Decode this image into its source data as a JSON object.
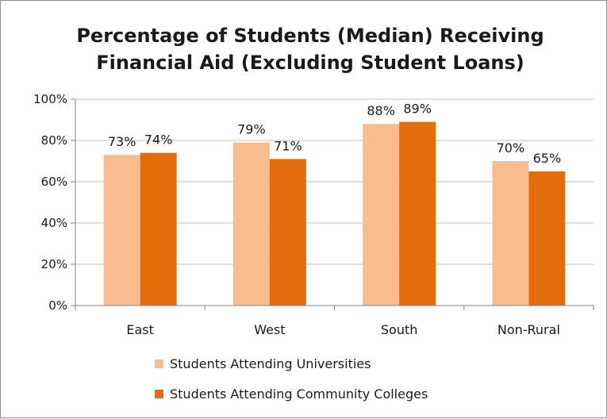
{
  "chart_data": {
    "type": "bar",
    "title_lines": [
      "Percentage of Students (Median) Receiving",
      "Financial Aid (Excluding Student Loans)"
    ],
    "categories": [
      "East",
      "West",
      "South",
      "Non-Rural"
    ],
    "series": [
      {
        "name": "Students Attending Universities",
        "color": "#f8bc8e",
        "values": [
          73,
          79,
          88,
          70
        ],
        "labels": [
          "73%",
          "79%",
          "88%",
          "70%"
        ]
      },
      {
        "name": "Students Attending Community Colleges",
        "color": "#e46c0a",
        "values": [
          74,
          71,
          89,
          65
        ],
        "labels": [
          "74%",
          "71%",
          "89%",
          "65%"
        ]
      }
    ],
    "y_ticks": [
      {
        "value": 0,
        "label": "0%"
      },
      {
        "value": 20,
        "label": "20%"
      },
      {
        "value": 40,
        "label": "40%"
      },
      {
        "value": 60,
        "label": "60%"
      },
      {
        "value": 80,
        "label": "80%"
      },
      {
        "value": 100,
        "label": "100%"
      }
    ],
    "ylim": [
      0,
      100
    ],
    "grid": true,
    "legend_position": "bottom",
    "colors": {
      "grid": "#bfbfbf",
      "axis": "#868686",
      "text": "#1a1a1a"
    }
  }
}
